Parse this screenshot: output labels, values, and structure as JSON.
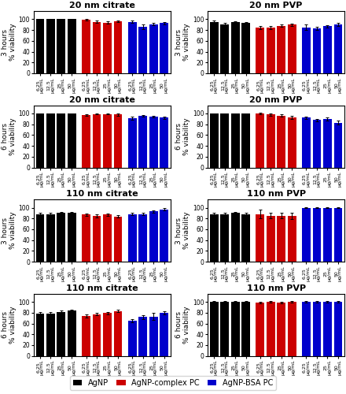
{
  "chart_data": [
    {
      "type": "bar",
      "title": "20 nm citrate",
      "y_label": "3 hours\n% viability",
      "categories": [
        "6.25\nμg/mL",
        "12.5\nμg/mL",
        "25\nμg/mL",
        "50\nμg/mL"
      ],
      "ylim": [
        0,
        115
      ],
      "yticks": [
        0,
        20,
        40,
        60,
        80,
        100
      ],
      "grid": false,
      "legend": "lower center",
      "series": [
        {
          "name": "AgNP",
          "color": "#000000",
          "values": [
            100,
            100,
            100,
            100
          ],
          "errors": [
            0.4,
            0.4,
            0.4,
            0.4
          ]
        },
        {
          "name": "AgNP-complex PC",
          "color": "#cc0000",
          "values": [
            99,
            95,
            94,
            96
          ],
          "errors": [
            1.5,
            2.0,
            2.0,
            1.5
          ]
        },
        {
          "name": "AgNP-BSA PC",
          "color": "#0000cc",
          "values": [
            95,
            86,
            91,
            93
          ],
          "errors": [
            2.0,
            5.0,
            2.0,
            2.5
          ]
        }
      ]
    },
    {
      "type": "bar",
      "title": "20 nm PVP",
      "y_label": "3 hours\n% viability",
      "categories": [
        "6.25\nμg/mL",
        "12.5\nμg/mL",
        "25\nμg/mL",
        "50\nμg/mL"
      ],
      "ylim": [
        0,
        115
      ],
      "yticks": [
        0,
        20,
        40,
        60,
        80,
        100
      ],
      "grid": false,
      "series": [
        {
          "name": "AgNP",
          "color": "#000000",
          "values": [
            95,
            90,
            95,
            93
          ],
          "errors": [
            2.0,
            3.0,
            1.5,
            2.5
          ]
        },
        {
          "name": "AgNP-complex PC",
          "color": "#cc0000",
          "values": [
            85,
            84,
            88,
            90
          ],
          "errors": [
            3.0,
            3.0,
            2.5,
            2.0
          ]
        },
        {
          "name": "AgNP-BSA PC",
          "color": "#0000cc",
          "values": [
            85,
            83,
            87,
            90
          ],
          "errors": [
            5.0,
            2.5,
            2.0,
            3.0
          ]
        }
      ]
    },
    {
      "type": "bar",
      "title": "20 nm citrate",
      "y_label": "6 hours\n% viability",
      "categories": [
        "6.25\nμg/mL",
        "12.5\nμg/mL",
        "25\nμg/mL",
        "50\nμg/mL"
      ],
      "ylim": [
        0,
        115
      ],
      "yticks": [
        0,
        20,
        40,
        60,
        80,
        100
      ],
      "grid": false,
      "series": [
        {
          "name": "AgNP",
          "color": "#000000",
          "values": [
            100,
            100,
            100,
            100
          ],
          "errors": [
            0.4,
            0.4,
            0.4,
            0.4
          ]
        },
        {
          "name": "AgNP-complex PC",
          "color": "#cc0000",
          "values": [
            97,
            99,
            99,
            98
          ],
          "errors": [
            2.0,
            1.0,
            1.0,
            2.0
          ]
        },
        {
          "name": "AgNP-BSA PC",
          "color": "#0000cc",
          "values": [
            91,
            95,
            94,
            92
          ],
          "errors": [
            2.5,
            1.5,
            2.0,
            2.5
          ]
        }
      ]
    },
    {
      "type": "bar",
      "title": "20 nm PVP",
      "y_label": "6 hours\n% viability",
      "categories": [
        "6.25\nμg/mL",
        "12.5\nμg/mL",
        "25\nμg/mL",
        "50\nμg/mL"
      ],
      "ylim": [
        0,
        115
      ],
      "yticks": [
        0,
        20,
        40,
        60,
        80,
        100
      ],
      "grid": false,
      "series": [
        {
          "name": "AgNP",
          "color": "#000000",
          "values": [
            100,
            100,
            100,
            100
          ],
          "errors": [
            0.4,
            0.4,
            0.4,
            0.4
          ]
        },
        {
          "name": "AgNP-complex PC",
          "color": "#cc0000",
          "values": [
            100,
            98,
            96,
            93
          ],
          "errors": [
            1.0,
            2.0,
            2.5,
            3.0
          ]
        },
        {
          "name": "AgNP-BSA PC",
          "color": "#0000cc",
          "values": [
            92,
            88,
            90,
            83
          ],
          "errors": [
            2.0,
            2.5,
            2.5,
            4.0
          ]
        }
      ]
    },
    {
      "type": "bar",
      "title": "110 nm citrate",
      "y_label": "3 hours\n% viability",
      "categories": [
        "6.25\nμg/mL",
        "12.5\nμg/mL",
        "25\nμg/mL",
        "50\nμg/mL"
      ],
      "ylim": [
        0,
        115
      ],
      "yticks": [
        0,
        20,
        40,
        60,
        80,
        100
      ],
      "grid": false,
      "series": [
        {
          "name": "AgNP",
          "color": "#000000",
          "values": [
            88,
            88,
            90,
            90
          ],
          "errors": [
            2.5,
            2.5,
            2.0,
            2.0
          ]
        },
        {
          "name": "AgNP-complex PC",
          "color": "#cc0000",
          "values": [
            87,
            85,
            87,
            84
          ],
          "errors": [
            2.0,
            2.5,
            2.5,
            2.0
          ]
        },
        {
          "name": "AgNP-BSA PC",
          "color": "#0000cc",
          "values": [
            88,
            88,
            93,
            97
          ],
          "errors": [
            2.0,
            2.0,
            2.5,
            2.0
          ]
        }
      ]
    },
    {
      "type": "bar",
      "title": "110 nm PVP",
      "y_label": "3 hours\n% viability",
      "categories": [
        "6.25\nμg/mL",
        "12.5\nμg/mL",
        "25\nμg/mL",
        "50\nμg/mL"
      ],
      "ylim": [
        0,
        115
      ],
      "yticks": [
        0,
        20,
        40,
        60,
        80,
        100
      ],
      "grid": false,
      "series": [
        {
          "name": "AgNP",
          "color": "#000000",
          "values": [
            88,
            88,
            90,
            88
          ],
          "errors": [
            2.5,
            2.0,
            2.0,
            2.5
          ]
        },
        {
          "name": "AgNP-complex PC",
          "color": "#cc0000",
          "values": [
            88,
            85,
            85,
            85
          ],
          "errors": [
            8.0,
            5.0,
            5.0,
            6.0
          ]
        },
        {
          "name": "AgNP-BSA PC",
          "color": "#0000cc",
          "values": [
            100,
            100,
            100,
            100
          ],
          "errors": [
            1.0,
            1.0,
            1.0,
            1.0
          ]
        }
      ]
    },
    {
      "type": "bar",
      "title": "110 nm citrate",
      "y_label": "6 hours\n% viability",
      "categories": [
        "6.25\nμg/mL",
        "12.5\nμg/mL",
        "25\nμg/mL",
        "50\nμg/mL"
      ],
      "ylim": [
        0,
        115
      ],
      "yticks": [
        0,
        20,
        40,
        60,
        80,
        100
      ],
      "grid": false,
      "series": [
        {
          "name": "AgNP",
          "color": "#000000",
          "values": [
            78,
            78,
            81,
            84
          ],
          "errors": [
            2.5,
            2.5,
            2.5,
            2.0
          ]
        },
        {
          "name": "AgNP-complex PC",
          "color": "#cc0000",
          "values": [
            74,
            77,
            79,
            83
          ],
          "errors": [
            2.5,
            2.0,
            2.5,
            2.5
          ]
        },
        {
          "name": "AgNP-BSA PC",
          "color": "#0000cc",
          "values": [
            65,
            72,
            73,
            80
          ],
          "errors": [
            3.5,
            4.0,
            7.0,
            3.0
          ]
        }
      ]
    },
    {
      "type": "bar",
      "title": "110 nm PVP",
      "y_label": "6 hours\n% viability",
      "categories": [
        "6.25\nμg/mL",
        "12.5\nμg/mL",
        "25\nμg/mL",
        "50\nμg/mL"
      ],
      "ylim": [
        0,
        115
      ],
      "yticks": [
        0,
        20,
        40,
        60,
        80,
        100
      ],
      "grid": false,
      "series": [
        {
          "name": "AgNP",
          "color": "#000000",
          "values": [
            100,
            100,
            100,
            100
          ],
          "errors": [
            1.5,
            2.0,
            1.5,
            1.5
          ]
        },
        {
          "name": "AgNP-complex PC",
          "color": "#cc0000",
          "values": [
            99,
            100,
            99,
            100
          ],
          "errors": [
            1.5,
            1.0,
            1.5,
            1.5
          ]
        },
        {
          "name": "AgNP-BSA PC",
          "color": "#0000cc",
          "values": [
            100,
            100,
            100,
            100
          ],
          "errors": [
            1.0,
            1.0,
            1.0,
            1.0
          ]
        }
      ]
    }
  ]
}
